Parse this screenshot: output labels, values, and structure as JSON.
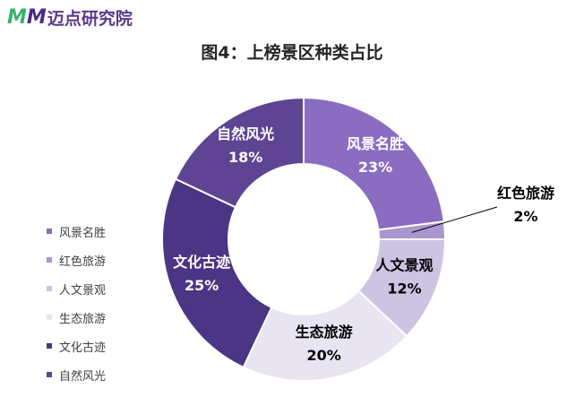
{
  "logo": {
    "mark_part1": "M",
    "mark_part2": "M",
    "name": "迈点研究院"
  },
  "chart_data": {
    "type": "pie",
    "donut": true,
    "title": "图4：上榜景区种类占比",
    "legend_position": "left",
    "categories": [
      "风景名胜",
      "红色旅游",
      "人文景观",
      "生态旅游",
      "文化古迹",
      "自然风光"
    ],
    "values": [
      23,
      2,
      12,
      20,
      25,
      18
    ],
    "value_labels": [
      "23%",
      "2%",
      "12%",
      "20%",
      "25%",
      "18%"
    ],
    "colors": [
      "#8a6cc0",
      "#a996cf",
      "#cdc3e2",
      "#e8e4f2",
      "#4c3584",
      "#5e4493"
    ],
    "label_colors": [
      "#ffffff",
      "#000000",
      "#000000",
      "#000000",
      "#ffffff",
      "#ffffff"
    ],
    "callout_categories": [
      "红色旅游"
    ]
  }
}
